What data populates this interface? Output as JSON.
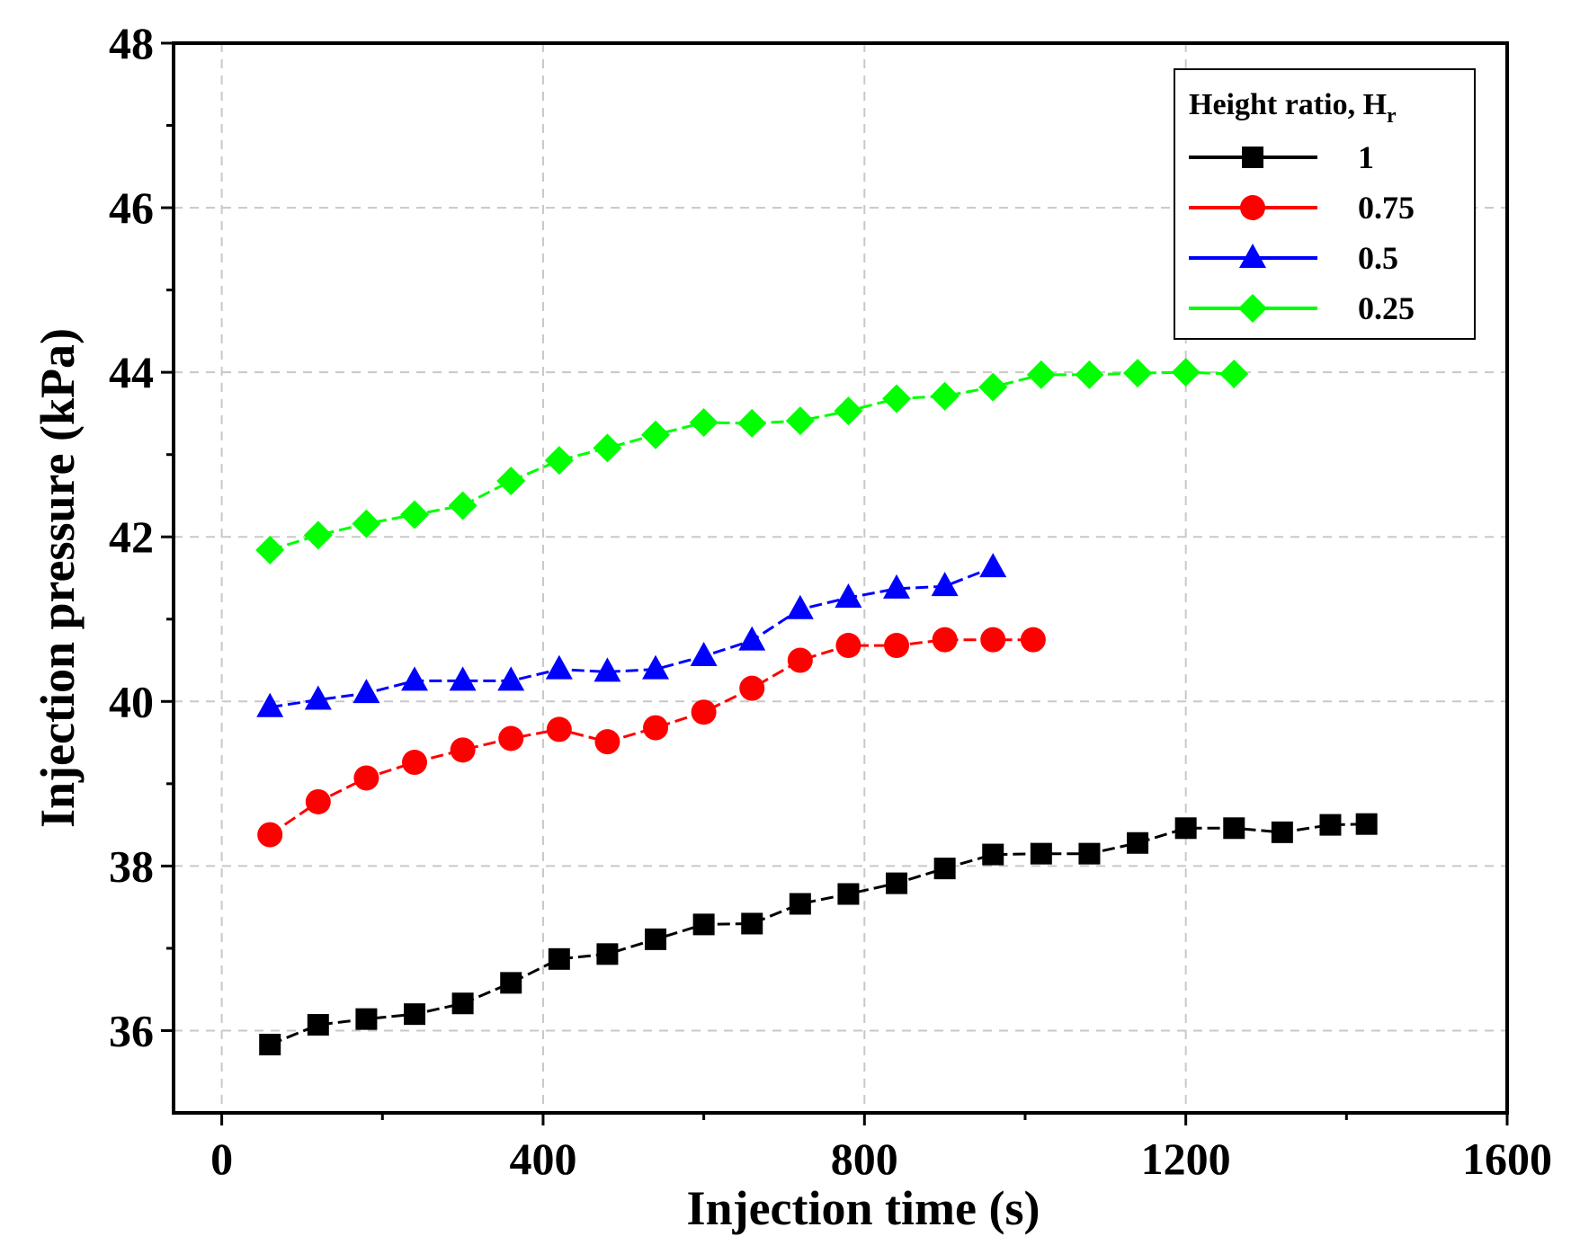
{
  "chart_data": {
    "type": "line",
    "title": "",
    "xlabel": "Injection time (s)",
    "ylabel": "Injection pressure (kPa)",
    "xlim": [
      -60,
      1600
    ],
    "ylim": [
      35,
      48
    ],
    "xticks": [
      0,
      400,
      800,
      1200,
      1600
    ],
    "yticks": [
      36,
      38,
      40,
      42,
      44,
      46,
      48
    ],
    "grid": true,
    "legend": {
      "title_main": "Height ratio, H",
      "title_sub": "r",
      "placement": "top-right"
    },
    "series": [
      {
        "name": "1",
        "color": "#000000",
        "marker": "square",
        "x": [
          60,
          120,
          180,
          240,
          300,
          360,
          420,
          480,
          540,
          600,
          660,
          720,
          780,
          840,
          900,
          960,
          1020,
          1080,
          1140,
          1200,
          1260,
          1320,
          1380,
          1425
        ],
        "y": [
          35.83,
          36.07,
          36.14,
          36.2,
          36.33,
          36.58,
          36.87,
          36.93,
          37.11,
          37.29,
          37.3,
          37.54,
          37.66,
          37.79,
          37.97,
          38.14,
          38.15,
          38.15,
          38.28,
          38.46,
          38.46,
          38.41,
          38.5,
          38.51
        ]
      },
      {
        "name": "0.75",
        "color": "#ff0000",
        "marker": "circle",
        "x": [
          60,
          120,
          180,
          240,
          300,
          360,
          420,
          480,
          540,
          600,
          660,
          720,
          780,
          840,
          900,
          960,
          1010
        ],
        "y": [
          38.38,
          38.78,
          39.07,
          39.26,
          39.41,
          39.55,
          39.66,
          39.51,
          39.68,
          39.87,
          40.16,
          40.5,
          40.68,
          40.68,
          40.75,
          40.75,
          40.75
        ]
      },
      {
        "name": "0.5",
        "color": "#0000ff",
        "marker": "triangle",
        "x": [
          60,
          120,
          180,
          240,
          300,
          360,
          420,
          480,
          540,
          600,
          660,
          720,
          780,
          840,
          900,
          960
        ],
        "y": [
          39.93,
          40.02,
          40.1,
          40.25,
          40.25,
          40.25,
          40.39,
          40.36,
          40.39,
          40.55,
          40.74,
          41.12,
          41.26,
          41.37,
          41.4,
          41.63
        ]
      },
      {
        "name": "0.25",
        "color": "#00ff00",
        "marker": "diamond",
        "x": [
          60,
          120,
          180,
          240,
          300,
          360,
          420,
          480,
          540,
          600,
          660,
          720,
          780,
          840,
          900,
          960,
          1020,
          1080,
          1140,
          1200,
          1260
        ],
        "y": [
          41.84,
          42.02,
          42.16,
          42.27,
          42.38,
          42.68,
          42.93,
          43.08,
          43.24,
          43.39,
          43.38,
          43.41,
          43.53,
          43.68,
          43.71,
          43.82,
          43.97,
          43.97,
          43.99,
          44.0,
          43.98
        ]
      }
    ]
  }
}
